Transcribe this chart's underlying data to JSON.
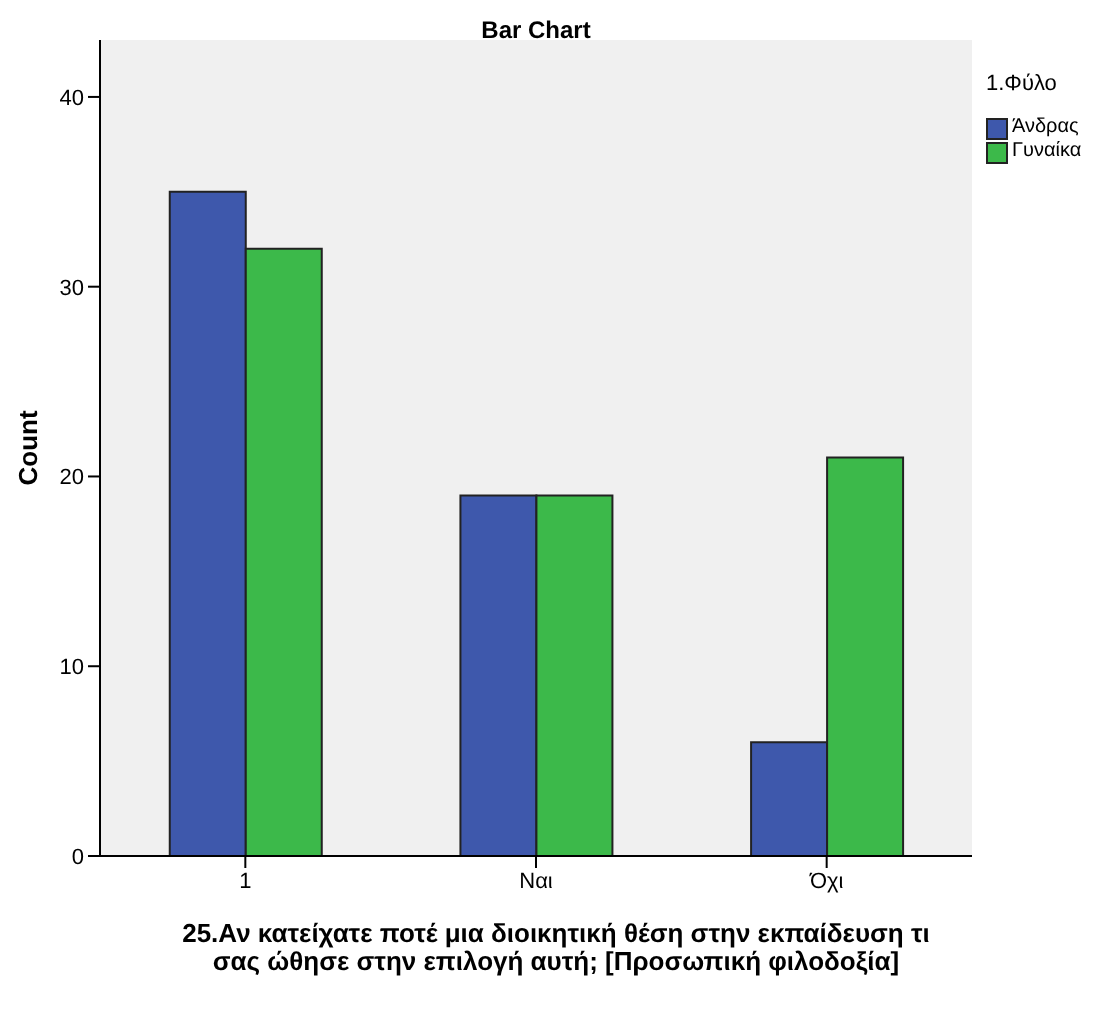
{
  "chart_data": {
    "type": "bar",
    "title": "Bar Chart",
    "xlabel": "25.Αν κατείχατε ποτέ μια διοικητική θέση στην εκπαίδευση τι σας ώθησε στην επιλογή αυτή; [Προσωπική φιλοδοξία]",
    "ylabel": "Count",
    "legend_title": "1.Φύλο",
    "categories": [
      "1",
      "Ναι",
      "Όχι"
    ],
    "series": [
      {
        "name": "Άνδρας",
        "color": "#3e58ac",
        "values": [
          35,
          19,
          6
        ]
      },
      {
        "name": "Γυναίκα",
        "color": "#3cb94a",
        "values": [
          32,
          19,
          21
        ]
      }
    ],
    "ylim": [
      0,
      43
    ],
    "yticks": [
      0,
      10,
      20,
      30,
      40
    ],
    "grid": false,
    "legend": "top right"
  }
}
